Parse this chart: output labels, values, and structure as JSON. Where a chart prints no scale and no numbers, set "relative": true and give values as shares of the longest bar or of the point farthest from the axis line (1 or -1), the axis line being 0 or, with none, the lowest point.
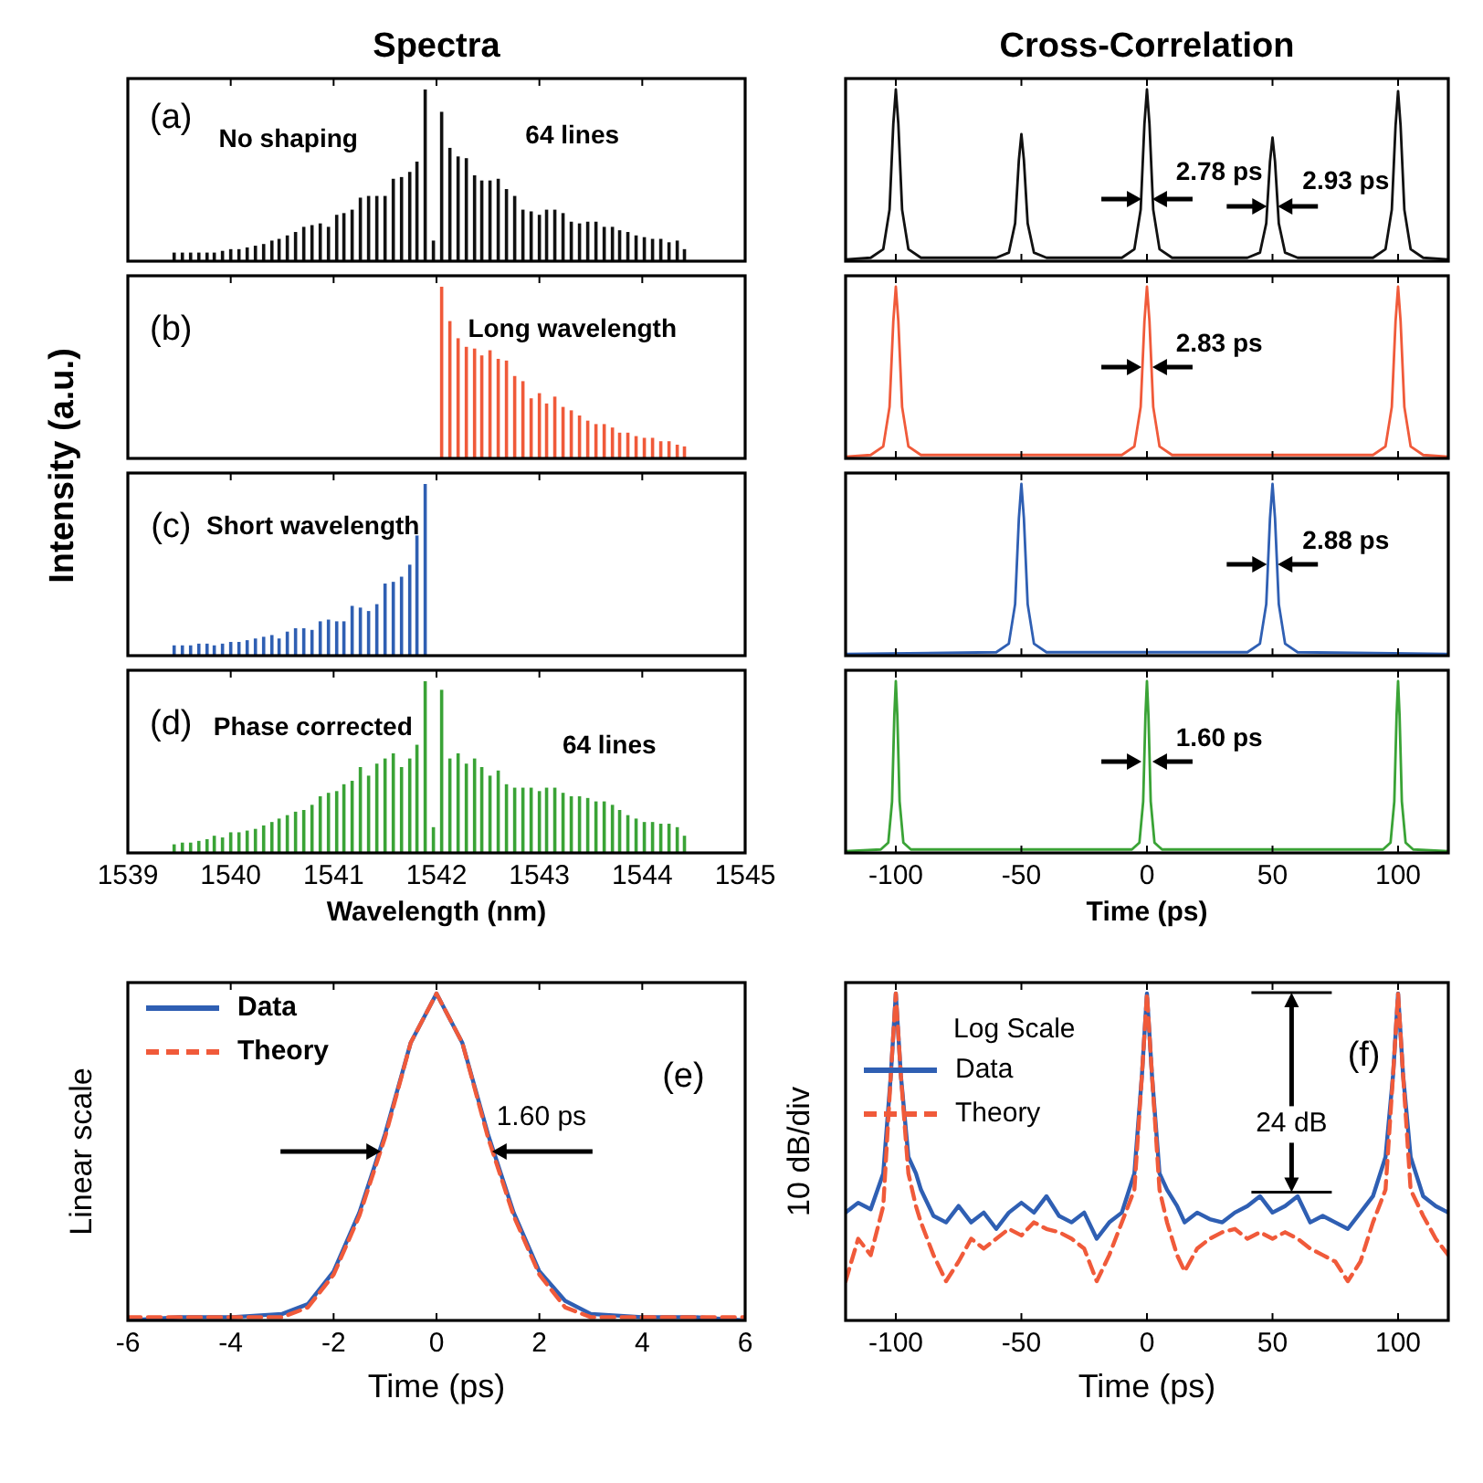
{
  "chart_data": [
    {
      "type": "bar",
      "title": "Spectra",
      "ylabel": "Intensity (a.u.)",
      "relative": true,
      "xlim": [
        1539,
        1545
      ],
      "xticks": [
        1539,
        1540,
        1541,
        1542,
        1543,
        1544,
        1545
      ],
      "tick_labels": false,
      "color": "#111111",
      "annotations": [
        "(a)",
        "No shaping",
        "64 lines"
      ],
      "x": [
        1539.45,
        1539.53,
        1539.61,
        1539.69,
        1539.77,
        1539.84,
        1539.92,
        1540.0,
        1540.08,
        1540.16,
        1540.24,
        1540.32,
        1540.4,
        1540.47,
        1540.55,
        1540.63,
        1540.71,
        1540.79,
        1540.87,
        1540.95,
        1541.03,
        1541.1,
        1541.18,
        1541.26,
        1541.34,
        1541.42,
        1541.5,
        1541.58,
        1541.66,
        1541.74,
        1541.81,
        1541.89,
        1541.97,
        1542.05,
        1542.13,
        1542.21,
        1542.29,
        1542.37,
        1542.44,
        1542.52,
        1542.6,
        1542.68,
        1542.76,
        1542.84,
        1542.92,
        1543.0,
        1543.07,
        1543.15,
        1543.23,
        1543.31,
        1543.39,
        1543.47,
        1543.55,
        1543.63,
        1543.71,
        1543.78,
        1543.86,
        1543.94,
        1544.02,
        1544.1,
        1544.18,
        1544.26,
        1544.34,
        1544.41
      ],
      "values": [
        0.05,
        0.05,
        0.05,
        0.05,
        0.05,
        0.05,
        0.06,
        0.07,
        0.07,
        0.08,
        0.09,
        0.1,
        0.12,
        0.13,
        0.15,
        0.17,
        0.2,
        0.21,
        0.22,
        0.2,
        0.27,
        0.28,
        0.3,
        0.37,
        0.38,
        0.38,
        0.38,
        0.48,
        0.49,
        0.52,
        0.58,
        1.0,
        0.12,
        0.87,
        0.66,
        0.61,
        0.6,
        0.5,
        0.47,
        0.47,
        0.48,
        0.42,
        0.38,
        0.3,
        0.29,
        0.27,
        0.3,
        0.3,
        0.28,
        0.23,
        0.22,
        0.23,
        0.23,
        0.2,
        0.2,
        0.18,
        0.17,
        0.15,
        0.14,
        0.13,
        0.13,
        0.11,
        0.12,
        0.07
      ]
    },
    {
      "type": "line",
      "title": "Cross-Correlation",
      "relative": true,
      "xlim": [
        -120,
        120
      ],
      "xticks": [
        -100,
        -50,
        0,
        50,
        100
      ],
      "tick_labels": false,
      "color": "#111111",
      "annotations": [
        "2.78 ps",
        "2.93 ps"
      ],
      "x": [
        -120,
        -110,
        -105,
        -102.5,
        -101,
        -100,
        -99,
        -97.5,
        -95,
        -90,
        -60,
        -55,
        -52.5,
        -51,
        -50,
        -49,
        -47.5,
        -45,
        -40,
        -10,
        -5,
        -2.5,
        -1,
        0,
        1,
        2.5,
        5,
        10,
        40,
        45,
        47.5,
        49,
        50,
        51,
        52.5,
        55,
        60,
        90,
        95,
        97.5,
        99,
        100,
        101,
        102.5,
        105,
        110,
        120
      ],
      "values": [
        0.01,
        0.02,
        0.07,
        0.3,
        0.8,
        1,
        0.8,
        0.3,
        0.07,
        0.02,
        0.02,
        0.05,
        0.22,
        0.59,
        0.74,
        0.59,
        0.22,
        0.05,
        0.02,
        0.02,
        0.07,
        0.3,
        0.8,
        1,
        0.8,
        0.3,
        0.07,
        0.02,
        0.02,
        0.05,
        0.22,
        0.58,
        0.72,
        0.58,
        0.22,
        0.05,
        0.02,
        0.02,
        0.07,
        0.3,
        0.79,
        0.99,
        0.79,
        0.3,
        0.07,
        0.02,
        0.01
      ]
    },
    {
      "type": "bar",
      "relative": true,
      "xlim": [
        1539,
        1545
      ],
      "xticks": [
        1539,
        1540,
        1541,
        1542,
        1543,
        1544,
        1545
      ],
      "tick_labels": false,
      "color": "#f05a3a",
      "annotations": [
        "(b)",
        "Long wavelength"
      ],
      "x": [
        1542.05,
        1542.13,
        1542.21,
        1542.29,
        1542.37,
        1542.44,
        1542.52,
        1542.6,
        1542.68,
        1542.76,
        1542.84,
        1542.92,
        1543.0,
        1543.07,
        1543.15,
        1543.23,
        1543.31,
        1543.39,
        1543.47,
        1543.55,
        1543.63,
        1543.71,
        1543.78,
        1543.86,
        1543.94,
        1544.02,
        1544.1,
        1544.18,
        1544.26,
        1544.34,
        1544.41
      ],
      "values": [
        1.0,
        0.8,
        0.7,
        0.65,
        0.64,
        0.6,
        0.63,
        0.58,
        0.57,
        0.48,
        0.45,
        0.35,
        0.38,
        0.32,
        0.36,
        0.3,
        0.28,
        0.25,
        0.22,
        0.2,
        0.2,
        0.18,
        0.15,
        0.15,
        0.13,
        0.12,
        0.12,
        0.1,
        0.1,
        0.08,
        0.07
      ]
    },
    {
      "type": "line",
      "relative": true,
      "xlim": [
        -120,
        120
      ],
      "xticks": [
        -100,
        -50,
        0,
        50,
        100
      ],
      "tick_labels": false,
      "color": "#f05a3a",
      "annotations": [
        "2.83 ps"
      ],
      "x": [
        -120,
        -110,
        -105,
        -102.5,
        -101,
        -100,
        -99,
        -97.5,
        -95,
        -90,
        -10,
        -5,
        -2.5,
        -1,
        0,
        1,
        2.5,
        5,
        10,
        90,
        95,
        97.5,
        99,
        100,
        101,
        102.5,
        105,
        110,
        120
      ],
      "values": [
        0.01,
        0.02,
        0.07,
        0.3,
        0.8,
        1,
        0.8,
        0.3,
        0.07,
        0.02,
        0.02,
        0.07,
        0.3,
        0.8,
        1,
        0.8,
        0.3,
        0.07,
        0.02,
        0.02,
        0.07,
        0.3,
        0.8,
        1,
        0.8,
        0.3,
        0.07,
        0.02,
        0.01
      ]
    },
    {
      "type": "bar",
      "relative": true,
      "xlim": [
        1539,
        1545
      ],
      "xticks": [
        1539,
        1540,
        1541,
        1542,
        1543,
        1544,
        1545
      ],
      "tick_labels": false,
      "color": "#2f5fb3",
      "annotations": [
        "(c)",
        "Short wavelength"
      ],
      "x": [
        1539.45,
        1539.53,
        1539.61,
        1539.69,
        1539.77,
        1539.84,
        1539.92,
        1540.0,
        1540.08,
        1540.16,
        1540.24,
        1540.32,
        1540.4,
        1540.47,
        1540.55,
        1540.63,
        1540.71,
        1540.79,
        1540.87,
        1540.95,
        1541.03,
        1541.1,
        1541.18,
        1541.26,
        1541.34,
        1541.42,
        1541.5,
        1541.58,
        1541.66,
        1541.74,
        1541.81,
        1541.89
      ],
      "values": [
        0.06,
        0.06,
        0.06,
        0.07,
        0.07,
        0.06,
        0.07,
        0.08,
        0.08,
        0.09,
        0.1,
        0.11,
        0.12,
        0.1,
        0.14,
        0.16,
        0.16,
        0.15,
        0.2,
        0.21,
        0.2,
        0.2,
        0.29,
        0.28,
        0.26,
        0.3,
        0.42,
        0.43,
        0.46,
        0.53,
        0.7,
        1.0
      ]
    },
    {
      "type": "line",
      "relative": true,
      "xlim": [
        -120,
        120
      ],
      "xticks": [
        -100,
        -50,
        0,
        50,
        100
      ],
      "tick_labels": false,
      "color": "#2f5fb3",
      "annotations": [
        "2.88 ps"
      ],
      "x": [
        -120,
        -60,
        -55,
        -52.5,
        -51,
        -50,
        -49,
        -47.5,
        -45,
        -40,
        40,
        45,
        47.5,
        49,
        50,
        51,
        52.5,
        55,
        60,
        120
      ],
      "values": [
        0.01,
        0.02,
        0.07,
        0.3,
        0.8,
        1,
        0.8,
        0.3,
        0.07,
        0.02,
        0.02,
        0.07,
        0.3,
        0.8,
        1,
        0.8,
        0.3,
        0.07,
        0.02,
        0.01
      ]
    },
    {
      "type": "bar",
      "relative": true,
      "xlim": [
        1539,
        1545
      ],
      "xticks": [
        1539,
        1540,
        1541,
        1542,
        1543,
        1544,
        1545
      ],
      "xlabel": "Wavelength (nm)",
      "color": "#3aa336",
      "annotations": [
        "(d)",
        "Phase corrected",
        "64 lines"
      ],
      "x": [
        1539.45,
        1539.53,
        1539.61,
        1539.69,
        1539.77,
        1539.84,
        1539.92,
        1540.0,
        1540.08,
        1540.16,
        1540.24,
        1540.32,
        1540.4,
        1540.47,
        1540.55,
        1540.63,
        1540.71,
        1540.79,
        1540.87,
        1540.95,
        1541.03,
        1541.1,
        1541.18,
        1541.26,
        1541.34,
        1541.42,
        1541.5,
        1541.58,
        1541.66,
        1541.74,
        1541.81,
        1541.89,
        1541.97,
        1542.05,
        1542.13,
        1542.21,
        1542.29,
        1542.37,
        1542.44,
        1542.52,
        1542.6,
        1542.68,
        1542.76,
        1542.84,
        1542.92,
        1543.0,
        1543.07,
        1543.15,
        1543.23,
        1543.31,
        1543.39,
        1543.47,
        1543.55,
        1543.63,
        1543.71,
        1543.78,
        1543.86,
        1543.94,
        1544.02,
        1544.1,
        1544.18,
        1544.26,
        1544.34,
        1544.41
      ],
      "values": [
        0.05,
        0.06,
        0.06,
        0.07,
        0.08,
        0.1,
        0.09,
        0.12,
        0.12,
        0.13,
        0.14,
        0.16,
        0.18,
        0.2,
        0.22,
        0.24,
        0.25,
        0.28,
        0.33,
        0.35,
        0.36,
        0.4,
        0.42,
        0.5,
        0.45,
        0.52,
        0.55,
        0.58,
        0.5,
        0.55,
        0.63,
        1.0,
        0.15,
        0.95,
        0.55,
        0.58,
        0.52,
        0.55,
        0.5,
        0.45,
        0.48,
        0.4,
        0.38,
        0.38,
        0.38,
        0.36,
        0.38,
        0.38,
        0.35,
        0.33,
        0.33,
        0.32,
        0.3,
        0.3,
        0.28,
        0.25,
        0.22,
        0.2,
        0.18,
        0.18,
        0.17,
        0.17,
        0.15,
        0.1
      ]
    },
    {
      "type": "line",
      "relative": true,
      "xlim": [
        -120,
        120
      ],
      "xticks": [
        -100,
        -50,
        0,
        50,
        100
      ],
      "xlabel": "Time (ps)",
      "color": "#3aa336",
      "annotations": [
        "1.60 ps"
      ],
      "x": [
        -120,
        -106,
        -103,
        -101.5,
        -100.6,
        -100,
        -99.4,
        -98.5,
        -97,
        -94,
        -6,
        -3,
        -1.5,
        -0.6,
        0,
        0.6,
        1.5,
        3,
        6,
        94,
        97,
        98.5,
        99.4,
        100,
        100.6,
        101.5,
        103,
        106,
        120
      ],
      "values": [
        0.01,
        0.02,
        0.06,
        0.3,
        0.8,
        1,
        0.8,
        0.3,
        0.06,
        0.02,
        0.02,
        0.06,
        0.3,
        0.8,
        1,
        0.8,
        0.3,
        0.06,
        0.02,
        0.02,
        0.06,
        0.3,
        0.8,
        1,
        0.8,
        0.3,
        0.06,
        0.02,
        0.01
      ]
    },
    {
      "type": "line",
      "relative": true,
      "xlim": [
        -6,
        6
      ],
      "xticks": [
        -6,
        -4,
        -2,
        0,
        2,
        4,
        6
      ],
      "xlabel": "Time (ps)",
      "ylabel": "Linear scale",
      "legend": "top left",
      "annotations": [
        "(e)",
        "1.60 ps"
      ],
      "x": [
        -6,
        -5,
        -4,
        -3,
        -2.5,
        -2,
        -1.5,
        -1,
        -0.5,
        0,
        0.5,
        1,
        1.5,
        2,
        2.5,
        3,
        4,
        5,
        6
      ],
      "series": [
        {
          "name": "Data",
          "color": "#2f5fb3",
          "line_style": "solid",
          "values": [
            0,
            0.01,
            0.01,
            0.02,
            0.05,
            0.15,
            0.33,
            0.57,
            0.85,
            1,
            0.85,
            0.57,
            0.33,
            0.15,
            0.06,
            0.02,
            0.01,
            0.01,
            0
          ]
        },
        {
          "name": "Theory",
          "color": "#f05a3a",
          "line_style": "dashed",
          "values": [
            0.01,
            0.01,
            0.01,
            0.01,
            0.04,
            0.14,
            0.32,
            0.56,
            0.85,
            1,
            0.85,
            0.56,
            0.32,
            0.14,
            0.04,
            0.01,
            0.01,
            0.01,
            0.01
          ]
        }
      ]
    },
    {
      "type": "line",
      "relative": true,
      "xlim": [
        -120,
        120
      ],
      "xticks": [
        -100,
        -50,
        0,
        50,
        100
      ],
      "xlabel": "Time (ps)",
      "ylabel": "10 dB/div",
      "legend": "top left",
      "annotations": [
        "Log Scale",
        "(f)",
        "24 dB"
      ],
      "x": [
        -120,
        -115,
        -110,
        -105,
        -102,
        -100,
        -98,
        -95,
        -92,
        -90,
        -85,
        -80,
        -75,
        -70,
        -65,
        -60,
        -55,
        -50,
        -45,
        -40,
        -35,
        -30,
        -25,
        -20,
        -15,
        -10,
        -5,
        -2,
        0,
        2,
        5,
        8,
        12,
        15,
        20,
        25,
        30,
        35,
        40,
        45,
        50,
        55,
        60,
        65,
        70,
        75,
        80,
        85,
        90,
        95,
        98,
        100,
        102,
        105,
        110,
        115,
        120
      ],
      "series": [
        {
          "name": "Data",
          "color": "#2f5fb3",
          "line_style": "solid",
          "values": [
            0.33,
            0.36,
            0.34,
            0.45,
            0.75,
            1,
            0.75,
            0.5,
            0.45,
            0.4,
            0.32,
            0.3,
            0.35,
            0.3,
            0.33,
            0.28,
            0.33,
            0.36,
            0.33,
            0.38,
            0.32,
            0.3,
            0.33,
            0.25,
            0.3,
            0.33,
            0.45,
            0.75,
            1,
            0.75,
            0.45,
            0.4,
            0.35,
            0.3,
            0.33,
            0.31,
            0.3,
            0.33,
            0.35,
            0.38,
            0.33,
            0.35,
            0.38,
            0.3,
            0.32,
            0.3,
            0.28,
            0.33,
            0.38,
            0.5,
            0.75,
            1,
            0.75,
            0.5,
            0.38,
            0.35,
            0.33
          ]
        },
        {
          "name": "Theory",
          "color": "#f05a3a",
          "line_style": "dashed",
          "values": [
            0.12,
            0.25,
            0.2,
            0.35,
            0.75,
            1,
            0.75,
            0.45,
            0.35,
            0.3,
            0.2,
            0.12,
            0.18,
            0.25,
            0.22,
            0.25,
            0.28,
            0.26,
            0.3,
            0.28,
            0.27,
            0.25,
            0.22,
            0.12,
            0.2,
            0.3,
            0.4,
            0.75,
            1,
            0.75,
            0.4,
            0.3,
            0.2,
            0.15,
            0.22,
            0.25,
            0.27,
            0.28,
            0.25,
            0.27,
            0.25,
            0.27,
            0.25,
            0.22,
            0.2,
            0.18,
            0.12,
            0.18,
            0.3,
            0.4,
            0.75,
            1,
            0.75,
            0.4,
            0.32,
            0.25,
            0.2
          ]
        }
      ]
    }
  ]
}
